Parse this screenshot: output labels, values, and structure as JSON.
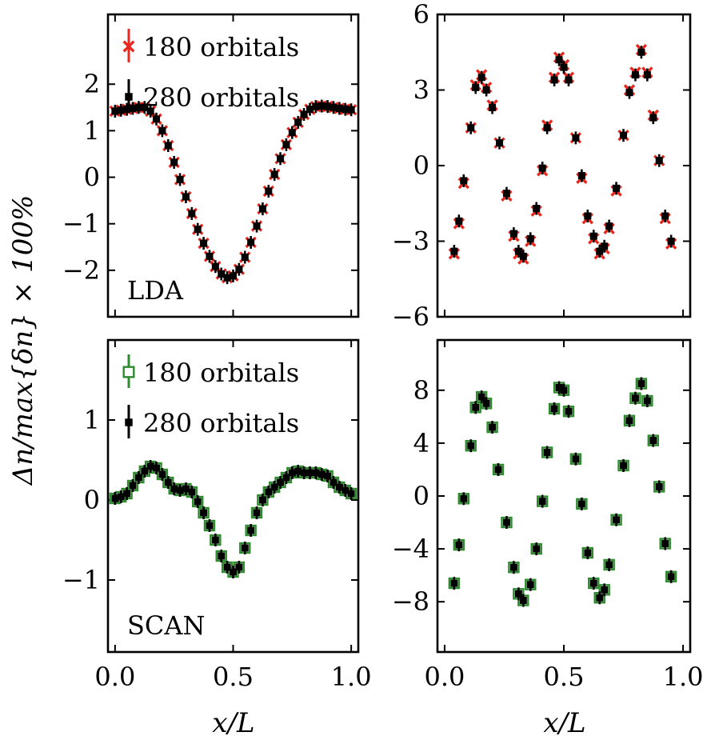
{
  "figure": {
    "ylabel": "Δn/max{δn} × 100%",
    "xlabel": "x/L",
    "colors": {
      "red": "#e8281e",
      "green": "#2e8b2e",
      "black": "#000000"
    }
  },
  "chart_data": [
    {
      "id": "lda-left",
      "type": "scatter",
      "panel_label": "LDA",
      "xlim": [
        -0.03,
        1.03
      ],
      "ylim": [
        -3.0,
        3.5
      ],
      "xticks": [
        "0.0",
        "0.5",
        "1.0"
      ],
      "xtick_values": [
        0,
        0.5,
        1.0
      ],
      "show_xtick_labels": false,
      "yticks": [
        "−2",
        "−1",
        "0",
        "1",
        "2"
      ],
      "ytick_values": [
        -2,
        -1,
        0,
        1,
        2
      ],
      "legend": [
        {
          "label": "180 orbitals",
          "marker": "x",
          "color": "#e8281e"
        },
        {
          "label": "280 orbitals",
          "marker": "square",
          "color": "#000000"
        }
      ],
      "series": [
        {
          "name": "180 orbitals",
          "marker": "x",
          "color": "#e8281e",
          "x": [
            0.0,
            0.025,
            0.05,
            0.075,
            0.1,
            0.125,
            0.15,
            0.175,
            0.2,
            0.225,
            0.25,
            0.275,
            0.3,
            0.325,
            0.35,
            0.375,
            0.4,
            0.425,
            0.45,
            0.475,
            0.5,
            0.525,
            0.55,
            0.575,
            0.6,
            0.625,
            0.65,
            0.675,
            0.7,
            0.725,
            0.75,
            0.775,
            0.8,
            0.825,
            0.85,
            0.875,
            0.9,
            0.925,
            0.95,
            0.975,
            1.0
          ],
          "y": [
            1.42,
            1.44,
            1.46,
            1.48,
            1.5,
            1.5,
            1.42,
            1.25,
            1.0,
            0.68,
            0.32,
            -0.05,
            -0.42,
            -0.78,
            -1.12,
            -1.42,
            -1.7,
            -1.92,
            -2.08,
            -2.16,
            -2.12,
            -1.98,
            -1.72,
            -1.4,
            -1.05,
            -0.68,
            -0.3,
            0.06,
            0.4,
            0.7,
            0.96,
            1.18,
            1.35,
            1.46,
            1.52,
            1.53,
            1.52,
            1.5,
            1.48,
            1.46,
            1.45
          ]
        },
        {
          "name": "280 orbitals",
          "marker": "square",
          "color": "#000000",
          "x": [
            0.0,
            0.025,
            0.05,
            0.075,
            0.1,
            0.125,
            0.15,
            0.175,
            0.2,
            0.225,
            0.25,
            0.275,
            0.3,
            0.325,
            0.35,
            0.375,
            0.4,
            0.425,
            0.45,
            0.475,
            0.5,
            0.525,
            0.55,
            0.575,
            0.6,
            0.625,
            0.65,
            0.675,
            0.7,
            0.725,
            0.75,
            0.775,
            0.8,
            0.825,
            0.85,
            0.875,
            0.9,
            0.925,
            0.95,
            0.975,
            1.0
          ],
          "y": [
            1.42,
            1.44,
            1.46,
            1.48,
            1.5,
            1.5,
            1.42,
            1.25,
            1.0,
            0.68,
            0.32,
            -0.05,
            -0.42,
            -0.78,
            -1.12,
            -1.42,
            -1.7,
            -1.92,
            -2.08,
            -2.16,
            -2.12,
            -1.98,
            -1.72,
            -1.4,
            -1.05,
            -0.68,
            -0.3,
            0.06,
            0.4,
            0.7,
            0.96,
            1.18,
            1.35,
            1.46,
            1.52,
            1.53,
            1.52,
            1.5,
            1.48,
            1.46,
            1.45
          ]
        }
      ]
    },
    {
      "id": "lda-right",
      "type": "scatter",
      "panel_label": "",
      "xlim": [
        -0.03,
        1.03
      ],
      "ylim": [
        -6,
        6
      ],
      "xticks": [
        "0.0",
        "0.5",
        "1.0"
      ],
      "xtick_values": [
        0,
        0.5,
        1.0
      ],
      "show_xtick_labels": false,
      "yticks": [
        "−6",
        "−3",
        "0",
        "3",
        "6"
      ],
      "ytick_values": [
        -6,
        -3,
        0,
        3,
        6
      ],
      "legend": [],
      "series": [
        {
          "name": "180 orbitals",
          "marker": "x",
          "color": "#e8281e",
          "x": [
            0.04,
            0.06,
            0.08,
            0.11,
            0.13,
            0.155,
            0.175,
            0.2,
            0.23,
            0.26,
            0.29,
            0.31,
            0.33,
            0.36,
            0.385,
            0.41,
            0.43,
            0.46,
            0.48,
            0.5,
            0.52,
            0.55,
            0.575,
            0.6,
            0.625,
            0.65,
            0.67,
            0.69,
            0.72,
            0.75,
            0.775,
            0.8,
            0.825,
            0.85,
            0.875,
            0.9,
            0.925,
            0.95
          ],
          "y": [
            -3.5,
            -2.3,
            -0.7,
            1.5,
            3.2,
            3.6,
            3.1,
            2.4,
            0.9,
            -1.2,
            -2.8,
            -3.5,
            -3.7,
            -3.0,
            -1.8,
            -0.2,
            1.6,
            3.5,
            4.3,
            4.0,
            3.5,
            1.1,
            -0.5,
            -2.1,
            -2.9,
            -3.5,
            -3.3,
            -2.5,
            -1.0,
            1.2,
            3.0,
            3.7,
            4.6,
            3.7,
            2.0,
            0.2,
            -2.1,
            -3.1
          ]
        },
        {
          "name": "280 orbitals",
          "marker": "square",
          "color": "#000000",
          "x": [
            0.04,
            0.06,
            0.08,
            0.11,
            0.13,
            0.155,
            0.175,
            0.2,
            0.23,
            0.26,
            0.29,
            0.31,
            0.33,
            0.36,
            0.385,
            0.41,
            0.43,
            0.46,
            0.48,
            0.5,
            0.52,
            0.55,
            0.575,
            0.6,
            0.625,
            0.65,
            0.67,
            0.69,
            0.72,
            0.75,
            0.775,
            0.8,
            0.825,
            0.85,
            0.875,
            0.9,
            0.925,
            0.95
          ],
          "y": [
            -3.4,
            -2.2,
            -0.6,
            1.5,
            3.1,
            3.5,
            3.0,
            2.3,
            0.9,
            -1.1,
            -2.7,
            -3.4,
            -3.6,
            -2.9,
            -1.7,
            -0.1,
            1.5,
            3.4,
            4.2,
            3.9,
            3.4,
            1.1,
            -0.4,
            -2.0,
            -2.8,
            -3.4,
            -3.2,
            -2.4,
            -0.9,
            1.2,
            2.9,
            3.6,
            4.5,
            3.6,
            1.9,
            0.2,
            -2.0,
            -3.0
          ]
        }
      ]
    },
    {
      "id": "scan-left",
      "type": "scatter",
      "panel_label": "SCAN",
      "xlim": [
        -0.03,
        1.03
      ],
      "ylim": [
        -1.9,
        2.0
      ],
      "xticks": [
        "0.0",
        "0.5",
        "1.0"
      ],
      "xtick_values": [
        0,
        0.5,
        1.0
      ],
      "show_xtick_labels": true,
      "yticks": [
        "−1",
        "0",
        "1"
      ],
      "ytick_values": [
        -1,
        0,
        1
      ],
      "legend": [
        {
          "label": "180 orbitals",
          "marker": "open-square",
          "color": "#2e8b2e"
        },
        {
          "label": "280 orbitals",
          "marker": "square",
          "color": "#000000"
        }
      ],
      "series": [
        {
          "name": "180 orbitals",
          "marker": "open-square",
          "color": "#2e8b2e",
          "x": [
            0.0,
            0.025,
            0.05,
            0.075,
            0.1,
            0.125,
            0.15,
            0.175,
            0.2,
            0.225,
            0.25,
            0.275,
            0.3,
            0.325,
            0.35,
            0.375,
            0.4,
            0.425,
            0.45,
            0.475,
            0.5,
            0.525,
            0.55,
            0.575,
            0.6,
            0.625,
            0.65,
            0.675,
            0.7,
            0.725,
            0.75,
            0.775,
            0.8,
            0.825,
            0.85,
            0.875,
            0.9,
            0.925,
            0.95,
            0.975,
            1.0
          ],
          "y": [
            0.02,
            0.04,
            0.08,
            0.18,
            0.28,
            0.36,
            0.42,
            0.4,
            0.32,
            0.22,
            0.14,
            0.12,
            0.14,
            0.1,
            -0.02,
            -0.16,
            -0.32,
            -0.5,
            -0.7,
            -0.84,
            -0.9,
            -0.84,
            -0.6,
            -0.38,
            -0.16,
            0.0,
            0.1,
            0.16,
            0.22,
            0.28,
            0.34,
            0.36,
            0.34,
            0.34,
            0.34,
            0.32,
            0.3,
            0.22,
            0.16,
            0.12,
            0.08
          ]
        },
        {
          "name": "280 orbitals",
          "marker": "square",
          "color": "#000000",
          "x": [
            0.0,
            0.025,
            0.05,
            0.075,
            0.1,
            0.125,
            0.15,
            0.175,
            0.2,
            0.225,
            0.25,
            0.275,
            0.3,
            0.325,
            0.35,
            0.375,
            0.4,
            0.425,
            0.45,
            0.475,
            0.5,
            0.525,
            0.55,
            0.575,
            0.6,
            0.625,
            0.65,
            0.675,
            0.7,
            0.725,
            0.75,
            0.775,
            0.8,
            0.825,
            0.85,
            0.875,
            0.9,
            0.925,
            0.95,
            0.975,
            1.0
          ],
          "y": [
            0.02,
            0.04,
            0.08,
            0.18,
            0.28,
            0.36,
            0.42,
            0.4,
            0.32,
            0.22,
            0.14,
            0.12,
            0.14,
            0.1,
            -0.02,
            -0.16,
            -0.32,
            -0.5,
            -0.7,
            -0.84,
            -0.9,
            -0.84,
            -0.6,
            -0.38,
            -0.16,
            0.0,
            0.1,
            0.16,
            0.22,
            0.28,
            0.34,
            0.36,
            0.34,
            0.34,
            0.34,
            0.32,
            0.3,
            0.22,
            0.16,
            0.12,
            0.08
          ]
        }
      ]
    },
    {
      "id": "scan-right",
      "type": "scatter",
      "panel_label": "",
      "xlim": [
        -0.03,
        1.03
      ],
      "ylim": [
        -11.8,
        11.8
      ],
      "xticks": [
        "0.0",
        "0.5",
        "1.0"
      ],
      "xtick_values": [
        0,
        0.5,
        1.0
      ],
      "show_xtick_labels": true,
      "yticks": [
        "−8",
        "−4",
        "0",
        "4",
        "8"
      ],
      "ytick_values": [
        -8,
        -4,
        0,
        4,
        8
      ],
      "legend": [],
      "series": [
        {
          "name": "180 orbitals",
          "marker": "open-square",
          "color": "#2e8b2e",
          "x": [
            0.04,
            0.06,
            0.08,
            0.11,
            0.13,
            0.155,
            0.175,
            0.2,
            0.225,
            0.26,
            0.29,
            0.31,
            0.33,
            0.36,
            0.385,
            0.41,
            0.43,
            0.46,
            0.48,
            0.5,
            0.52,
            0.55,
            0.575,
            0.6,
            0.625,
            0.65,
            0.67,
            0.69,
            0.72,
            0.75,
            0.775,
            0.8,
            0.825,
            0.85,
            0.875,
            0.9,
            0.925,
            0.95
          ],
          "y": [
            -6.6,
            -3.7,
            -0.2,
            3.8,
            6.7,
            7.5,
            7.0,
            5.2,
            2.0,
            -2.0,
            -5.4,
            -7.4,
            -7.9,
            -6.7,
            -4.0,
            -0.4,
            3.3,
            6.6,
            8.2,
            8.0,
            6.4,
            2.8,
            -0.6,
            -4.3,
            -6.6,
            -7.7,
            -7.1,
            -5.2,
            -1.8,
            2.3,
            5.7,
            7.4,
            8.5,
            7.2,
            4.2,
            0.7,
            -3.6,
            -6.1
          ]
        },
        {
          "name": "280 orbitals",
          "marker": "square",
          "color": "#000000",
          "x": [
            0.04,
            0.06,
            0.08,
            0.11,
            0.13,
            0.155,
            0.175,
            0.2,
            0.225,
            0.26,
            0.29,
            0.31,
            0.33,
            0.36,
            0.385,
            0.41,
            0.43,
            0.46,
            0.48,
            0.5,
            0.52,
            0.55,
            0.575,
            0.6,
            0.625,
            0.65,
            0.67,
            0.69,
            0.72,
            0.75,
            0.775,
            0.8,
            0.825,
            0.85,
            0.875,
            0.9,
            0.925,
            0.95
          ],
          "y": [
            -6.6,
            -3.7,
            -0.2,
            3.8,
            6.7,
            7.5,
            7.0,
            5.2,
            2.0,
            -2.0,
            -5.4,
            -7.4,
            -7.9,
            -6.7,
            -4.0,
            -0.4,
            3.3,
            6.6,
            8.2,
            8.0,
            6.4,
            2.8,
            -0.6,
            -4.3,
            -6.6,
            -7.7,
            -7.1,
            -5.2,
            -1.8,
            2.3,
            5.7,
            7.4,
            8.5,
            7.2,
            4.2,
            0.7,
            -3.6,
            -6.1
          ]
        }
      ]
    }
  ]
}
